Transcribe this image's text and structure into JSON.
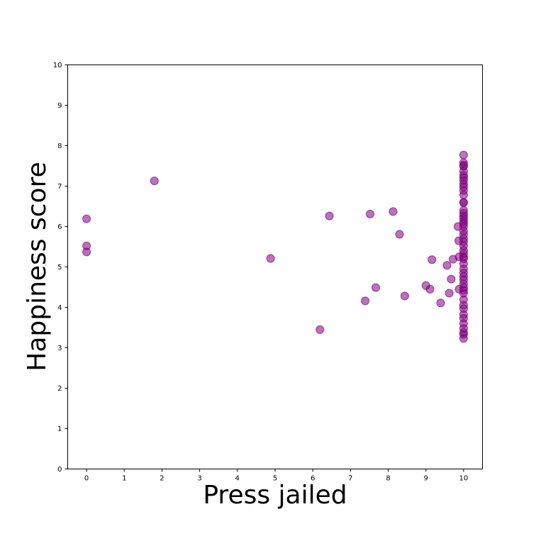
{
  "chart_data": {
    "type": "scatter",
    "title": "",
    "xlabel": "Press jailed",
    "ylabel": "Happiness score",
    "xlim": [
      -0.5,
      10.5
    ],
    "ylim": [
      0,
      10
    ],
    "xticks": [
      0,
      1,
      2,
      3,
      4,
      5,
      6,
      7,
      8,
      9,
      10
    ],
    "yticks": [
      0,
      1,
      2,
      3,
      4,
      5,
      6,
      7,
      8,
      9,
      10
    ],
    "grid": false,
    "legend": "none",
    "marker_color": "#800080",
    "marker_alpha": 0.55,
    "points": [
      {
        "x": 0,
        "y": 6.19
      },
      {
        "x": 0,
        "y": 5.52
      },
      {
        "x": 0,
        "y": 5.37
      },
      {
        "x": 1.8,
        "y": 7.13
      },
      {
        "x": 4.88,
        "y": 5.21
      },
      {
        "x": 6.19,
        "y": 3.45
      },
      {
        "x": 6.44,
        "y": 6.26
      },
      {
        "x": 7.39,
        "y": 4.16
      },
      {
        "x": 7.52,
        "y": 6.31
      },
      {
        "x": 7.67,
        "y": 4.49
      },
      {
        "x": 8.13,
        "y": 6.37
      },
      {
        "x": 8.3,
        "y": 5.81
      },
      {
        "x": 8.44,
        "y": 4.28
      },
      {
        "x": 9.0,
        "y": 4.54
      },
      {
        "x": 9.11,
        "y": 4.45
      },
      {
        "x": 9.16,
        "y": 5.18
      },
      {
        "x": 9.39,
        "y": 4.11
      },
      {
        "x": 9.56,
        "y": 5.04
      },
      {
        "x": 9.62,
        "y": 4.35
      },
      {
        "x": 9.67,
        "y": 4.7
      },
      {
        "x": 9.72,
        "y": 5.19
      },
      {
        "x": 9.85,
        "y": 6.0
      },
      {
        "x": 9.87,
        "y": 5.65
      },
      {
        "x": 9.88,
        "y": 5.25
      },
      {
        "x": 9.88,
        "y": 4.45
      },
      {
        "x": 10,
        "y": 7.77
      },
      {
        "x": 10,
        "y": 7.58
      },
      {
        "x": 10,
        "y": 7.52
      },
      {
        "x": 10,
        "y": 7.49
      },
      {
        "x": 10,
        "y": 7.37
      },
      {
        "x": 10,
        "y": 7.27
      },
      {
        "x": 10,
        "y": 7.21
      },
      {
        "x": 10,
        "y": 7.14
      },
      {
        "x": 10,
        "y": 7.05
      },
      {
        "x": 10,
        "y": 6.98
      },
      {
        "x": 10,
        "y": 6.89
      },
      {
        "x": 10,
        "y": 6.78
      },
      {
        "x": 10,
        "y": 6.6
      },
      {
        "x": 10,
        "y": 6.59
      },
      {
        "x": 10,
        "y": 6.4
      },
      {
        "x": 10,
        "y": 6.33
      },
      {
        "x": 10,
        "y": 6.26
      },
      {
        "x": 10,
        "y": 6.2
      },
      {
        "x": 10,
        "y": 6.13
      },
      {
        "x": 10,
        "y": 6.07
      },
      {
        "x": 10,
        "y": 6.0
      },
      {
        "x": 10,
        "y": 5.89
      },
      {
        "x": 10,
        "y": 5.8
      },
      {
        "x": 10,
        "y": 5.7
      },
      {
        "x": 10,
        "y": 5.62
      },
      {
        "x": 10,
        "y": 5.52
      },
      {
        "x": 10,
        "y": 5.41
      },
      {
        "x": 10,
        "y": 5.33
      },
      {
        "x": 10,
        "y": 5.25
      },
      {
        "x": 10,
        "y": 5.2
      },
      {
        "x": 10,
        "y": 5.08
      },
      {
        "x": 10,
        "y": 4.95
      },
      {
        "x": 10,
        "y": 4.85
      },
      {
        "x": 10,
        "y": 4.76
      },
      {
        "x": 10,
        "y": 4.68
      },
      {
        "x": 10,
        "y": 4.58
      },
      {
        "x": 10,
        "y": 4.49
      },
      {
        "x": 10,
        "y": 4.42
      },
      {
        "x": 10,
        "y": 4.35
      },
      {
        "x": 10,
        "y": 4.19
      },
      {
        "x": 10,
        "y": 4.05
      },
      {
        "x": 10,
        "y": 3.97
      },
      {
        "x": 10,
        "y": 3.82
      },
      {
        "x": 10,
        "y": 3.73
      },
      {
        "x": 10,
        "y": 3.6
      },
      {
        "x": 10,
        "y": 3.48
      },
      {
        "x": 10,
        "y": 3.38
      },
      {
        "x": 10,
        "y": 3.33
      },
      {
        "x": 10,
        "y": 3.23
      }
    ]
  }
}
